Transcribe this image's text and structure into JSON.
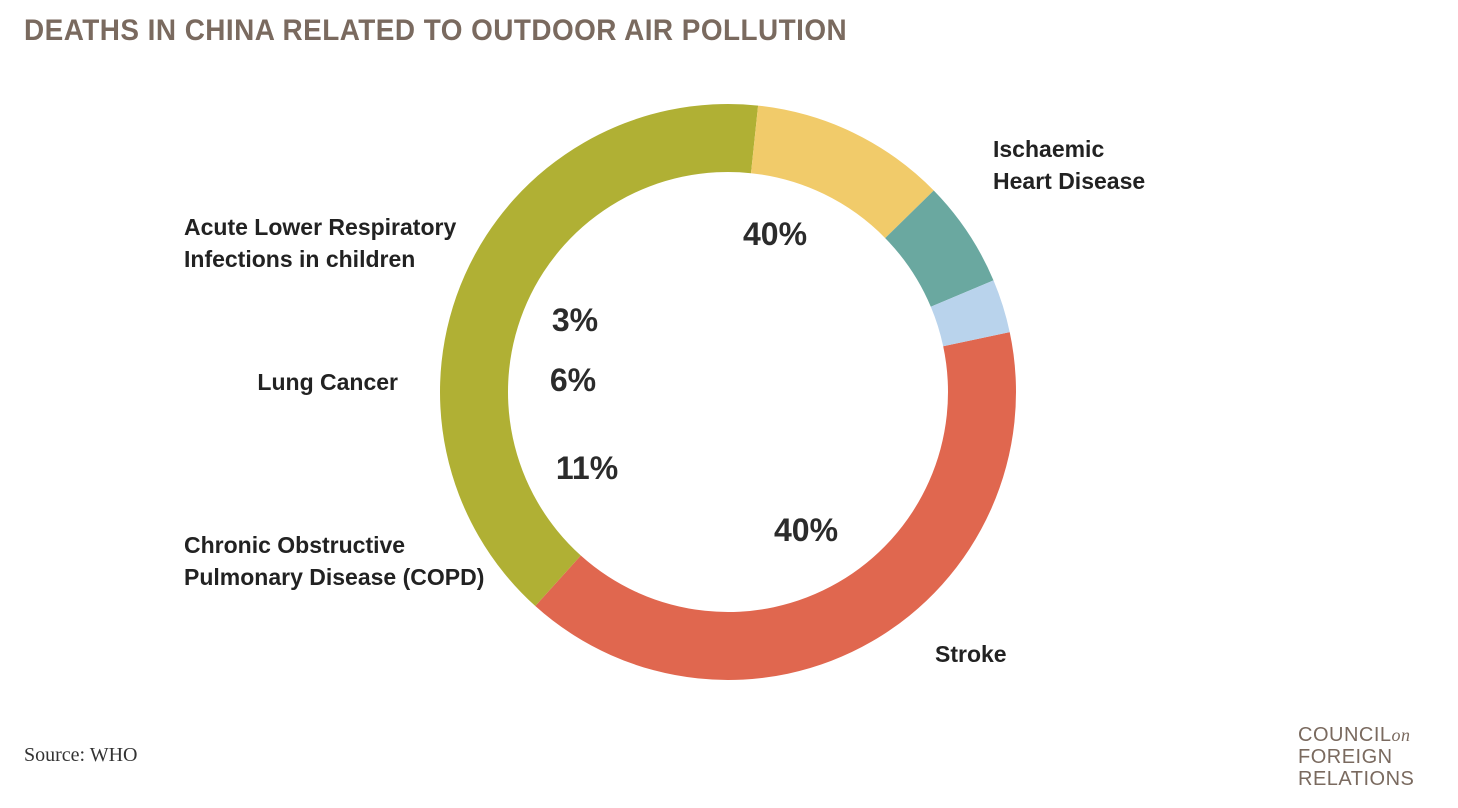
{
  "chart_data": {
    "type": "pie",
    "donut": true,
    "title": "DEATHS IN CHINA RELATED TO OUTDOOR AIR POLLUTION",
    "source": "Source: WHO",
    "slices": [
      {
        "label_lines": [
          "Ischaemic",
          "Heart Disease"
        ],
        "value": 40,
        "value_label": "40%",
        "color": "#e0674f"
      },
      {
        "label_lines": [
          "Stroke"
        ],
        "value": 40,
        "value_label": "40%",
        "color": "#b0b034"
      },
      {
        "label_lines": [
          "Chronic Obstructive",
          "Pulmonary Disease (COPD)"
        ],
        "value": 11,
        "value_label": "11%",
        "color": "#f1cb6a"
      },
      {
        "label_lines": [
          "Lung Cancer"
        ],
        "value": 6,
        "value_label": "6%",
        "color": "#6aa8a0"
      },
      {
        "label_lines": [
          "Acute Lower Respiratory",
          "Infections in children"
        ],
        "value": 3,
        "value_label": "3%",
        "color": "#b9d3ec"
      }
    ]
  },
  "branding": {
    "logo_line1": "COUNCIL",
    "logo_line1_suffix": "on",
    "logo_line2": "FOREIGN",
    "logo_line3": "RELATIONS"
  }
}
